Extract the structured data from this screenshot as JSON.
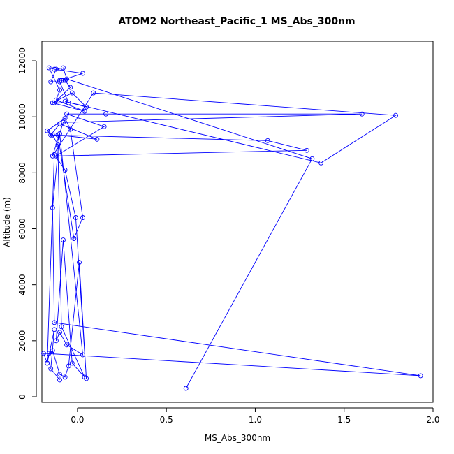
{
  "chart_data": {
    "type": "line",
    "title": "ATOM2 Northeast_Pacific_1 MS_Abs_300nm",
    "xlabel": "MS_Abs_300nm",
    "ylabel": "Altitude (m)",
    "xlim": [
      -0.2,
      2.0
    ],
    "ylim": [
      -200,
      12700
    ],
    "xticks": [
      0.0,
      0.5,
      1.0,
      1.5,
      2.0
    ],
    "xtick_labels": [
      "0.0",
      "0.5",
      "1.0",
      "1.5",
      "2.0"
    ],
    "yticks": [
      0,
      2000,
      4000,
      6000,
      8000,
      10000,
      12000
    ],
    "ytick_labels": [
      "0",
      "2000",
      "4000",
      "6000",
      "8000",
      "10000",
      "12000"
    ],
    "grid": false,
    "line_color": "#0000ff",
    "marker": "open-circle",
    "series": [
      {
        "x": [
          -0.1,
          -0.15,
          -0.13,
          -0.17,
          -0.16,
          -0.14,
          -0.1,
          -0.07,
          -0.05,
          0.01,
          0.05,
          -0.01,
          -0.07,
          -0.13,
          -0.17,
          -0.19,
          1.93,
          -0.13,
          -0.14,
          -0.1,
          0.03,
          -0.06,
          -0.1,
          -0.12,
          -0.08,
          -0.03,
          0.04,
          -0.09,
          -0.11,
          -0.14,
          -0.17,
          -0.07,
          -0.04,
          0.03,
          -0.02,
          -0.11,
          0.11,
          -0.1,
          -0.15,
          1.07,
          1.29,
          -0.12,
          0.15,
          -0.06,
          0.16,
          1.6,
          -0.08,
          -0.14,
          0.09,
          1.79,
          1.37,
          -0.07,
          0.05,
          -0.03,
          -0.14,
          0.04,
          -0.12,
          -0.1,
          -0.16,
          -0.13,
          0.03,
          -0.09,
          -0.1,
          -0.08,
          -0.1,
          -0.09,
          -0.07,
          -0.04,
          -0.13,
          -0.05,
          -0.1,
          -0.15,
          -0.12,
          -0.08,
          -0.06,
          1.32,
          0.61
        ],
        "y": [
          600,
          1000,
          2400,
          1200,
          1550,
          1650,
          800,
          700,
          1100,
          4800,
          650,
          6400,
          8100,
          8650,
          1200,
          1550,
          750,
          2650,
          6750,
          9400,
          1500,
          1850,
          2300,
          2000,
          5600,
          1200,
          700,
          2500,
          9000,
          9350,
          9500,
          9950,
          9550,
          6400,
          5650,
          9350,
          9200,
          9750,
          9350,
          9150,
          8800,
          8600,
          9650,
          10100,
          10100,
          10100,
          9800,
          8600,
          10850,
          10050,
          8350,
          10550,
          10350,
          10850,
          10500,
          10200,
          10600,
          10950,
          11750,
          11700,
          11550,
          11300,
          11300,
          11300,
          11300,
          11300,
          11300,
          11050,
          10500,
          10500,
          11250,
          11250,
          11700,
          11750,
          11350,
          8500,
          300
        ]
      }
    ]
  }
}
